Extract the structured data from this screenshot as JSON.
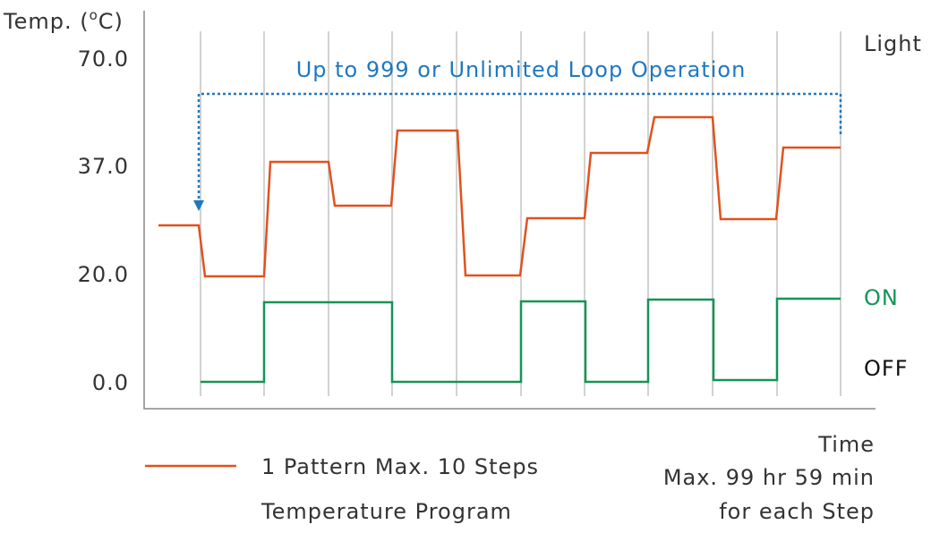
{
  "y_axis": {
    "label_prefix": "Temp. (",
    "label_superscript": "o",
    "label_suffix": "C)",
    "ticks": [
      "70.0",
      "37.0",
      "20.0",
      "0.0"
    ]
  },
  "annotation": "Up to 999 or Unlimited Loop Operation",
  "light": {
    "title": "Light",
    "on": "ON",
    "off": "OFF"
  },
  "legend": {
    "line1": "1 Pattern Max. 10 Steps",
    "line2": "Temperature Program"
  },
  "time_note": {
    "line1": "Time",
    "line2": "Max. 99 hr 59 min",
    "line3": "for each Step"
  }
}
